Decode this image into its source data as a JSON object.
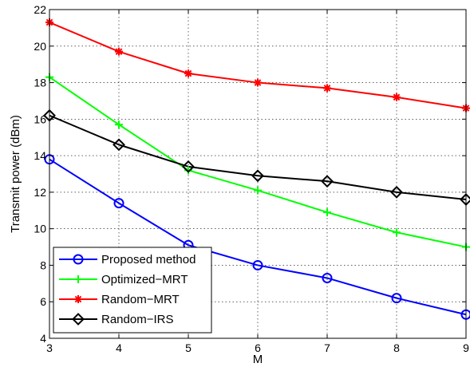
{
  "chart_data": {
    "type": "line",
    "xlabel": "M",
    "ylabel": "Transmit power (dBm)",
    "xlim": [
      3,
      9
    ],
    "ylim": [
      4,
      22
    ],
    "x_ticks": [
      3,
      4,
      5,
      6,
      7,
      8,
      9
    ],
    "y_ticks": [
      4,
      6,
      8,
      10,
      12,
      14,
      16,
      18,
      20,
      22
    ],
    "grid": true,
    "legend_position": "bottom-left",
    "x": [
      3,
      4,
      5,
      6,
      7,
      8,
      9
    ],
    "series": [
      {
        "name": "Proposed method",
        "color": "#0000ff",
        "marker": "circle",
        "values": [
          13.8,
          11.4,
          9.1,
          8.0,
          7.3,
          6.2,
          5.3
        ]
      },
      {
        "name": "Optimized−MRT",
        "color": "#00ff00",
        "marker": "plus",
        "values": [
          18.3,
          15.7,
          13.2,
          12.1,
          10.9,
          9.8,
          9.0
        ]
      },
      {
        "name": "Random−MRT",
        "color": "#ff0000",
        "marker": "asterisk",
        "values": [
          21.3,
          19.7,
          18.5,
          18.0,
          17.7,
          17.2,
          16.6
        ]
      },
      {
        "name": "Random−IRS",
        "color": "#000000",
        "marker": "diamond",
        "values": [
          16.2,
          14.6,
          13.4,
          12.9,
          12.6,
          12.0,
          11.6
        ]
      }
    ]
  }
}
